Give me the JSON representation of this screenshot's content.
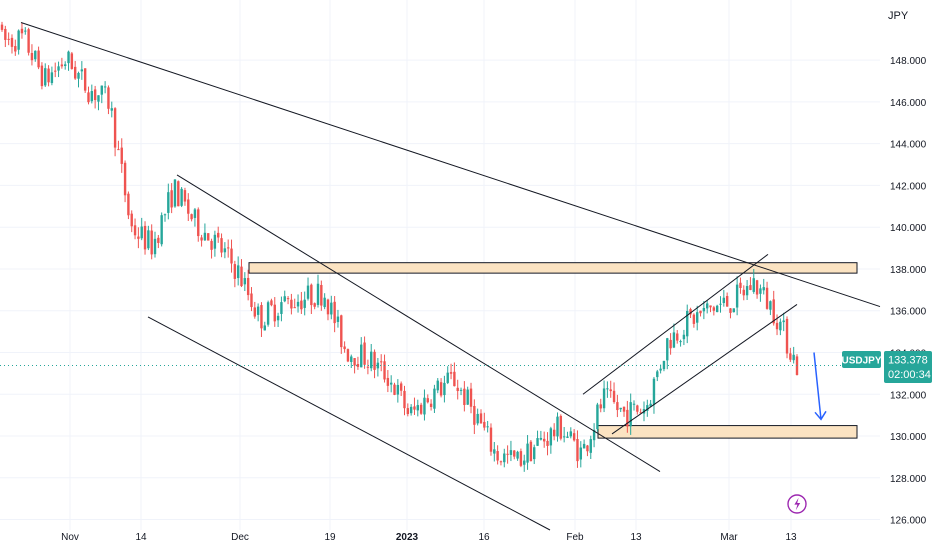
{
  "chart_data": {
    "type": "candlestick",
    "symbol": "USDJPY",
    "currency": "JPY",
    "y_ticks": [
      126,
      128,
      130,
      132,
      134,
      136,
      138,
      140,
      142,
      144,
      146,
      148
    ],
    "y_tick_labels": [
      "126.000",
      "128.000",
      "130.000",
      "132.000",
      "134.000",
      "136.000",
      "138.000",
      "140.000",
      "142.000",
      "144.000",
      "146.000",
      "148.000"
    ],
    "ylim": [
      125.5,
      150.4
    ],
    "x_tick_labels": [
      "Nov",
      "14",
      "Dec",
      "19",
      "2023",
      "16",
      "Feb",
      "13",
      "Mar",
      "13"
    ],
    "last_price": 133.378,
    "last_price_label": "133.378",
    "countdown": "02:00:34",
    "up_color": "#26a69a",
    "down_color": "#ef5350",
    "zone_color": "#fbe3c2",
    "arrow_color": "#2962ff",
    "grid": true,
    "path_points": [
      [
        149.8,
        148.0
      ],
      [
        148.5,
        149.6
      ],
      [
        146.0,
        148.1
      ],
      [
        148.8,
        147.3
      ],
      [
        145.8,
        147.5
      ],
      [
        146.8,
        145.2
      ],
      [
        141.0,
        139.0
      ],
      [
        140.0,
        138.2
      ],
      [
        141.5,
        142.2
      ],
      [
        141.2,
        139.2
      ],
      [
        140.2,
        138.2
      ],
      [
        139.4,
        136.3
      ],
      [
        134.2,
        137.0
      ],
      [
        137.2,
        135.5
      ],
      [
        137.8,
        135.4
      ],
      [
        138.0,
        135.8
      ],
      [
        137.0,
        131.2
      ],
      [
        133.0,
        134.5
      ],
      [
        134.4,
        131.2
      ],
      [
        132.0,
        130.0
      ],
      [
        132.5,
        131.5
      ],
      [
        134.4,
        131.1
      ],
      [
        133.0,
        129.2
      ],
      [
        130.6,
        127.6
      ],
      [
        128.4,
        129.2
      ],
      [
        130.7,
        128.7
      ],
      [
        130.4,
        130.4
      ],
      [
        130.0,
        128.3
      ],
      [
        131.0,
        132.6
      ],
      [
        130.8,
        131.3
      ],
      [
        130.6,
        132.3
      ],
      [
        135.0,
        134.2
      ],
      [
        135.3,
        135.8
      ],
      [
        136.5,
        135.7
      ],
      [
        136.8,
        136.1
      ],
      [
        137.0,
        137.7
      ],
      [
        136.8,
        135.0
      ],
      [
        133.8,
        132.9
      ]
    ],
    "zones": [
      {
        "name": "resistance",
        "from": 137.8,
        "to": 138.3
      },
      {
        "name": "support",
        "from": 129.9,
        "to": 130.5
      }
    ],
    "trendlines": [
      {
        "name": "long-term-down",
        "from": [
          21,
          149.8
        ],
        "to": [
          880,
          136.2
        ]
      },
      {
        "name": "channel-upper",
        "from": [
          177,
          142.5
        ],
        "to": [
          660,
          128.3
        ]
      },
      {
        "name": "channel-lower",
        "from": [
          148,
          135.7
        ],
        "to": [
          550,
          125.5
        ]
      },
      {
        "name": "rising-upper",
        "from": [
          583,
          132.0
        ],
        "to": [
          768,
          138.7
        ]
      },
      {
        "name": "rising-lower",
        "from": [
          612,
          130.1
        ],
        "to": [
          797,
          136.3
        ]
      }
    ],
    "projection_arrow": {
      "from": [
        814,
        134.0
      ],
      "to": [
        821,
        130.8
      ]
    }
  }
}
